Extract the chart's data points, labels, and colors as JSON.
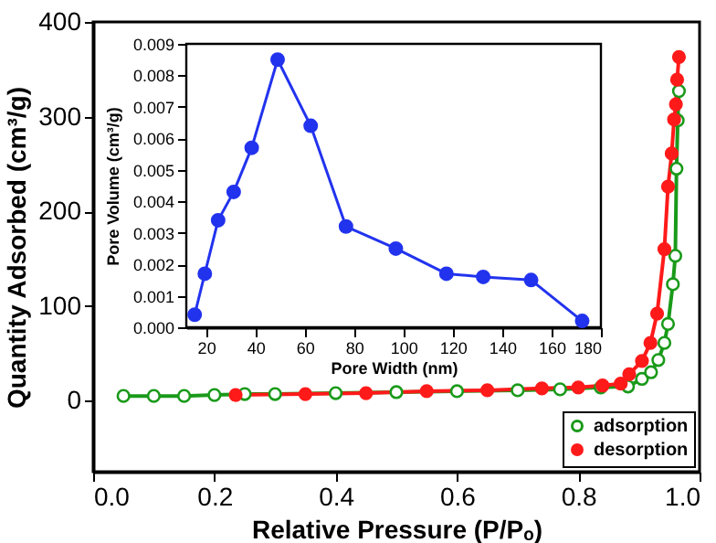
{
  "chart_data": [
    {
      "type": "line",
      "xlabel": "Relative Pressure (P/Pₒ)",
      "ylabel": "Quantity Adsorbed (cm³/g)",
      "xlim": [
        0,
        1.0
      ],
      "ylim": [
        -75,
        400
      ],
      "xticks": [
        {
          "value": 0,
          "label": "0.0"
        },
        {
          "value": 0.2,
          "label": "0.2"
        },
        {
          "value": 0.4,
          "label": "0.4"
        },
        {
          "value": 0.6,
          "label": "0.6"
        },
        {
          "value": 0.8,
          "label": "0.8"
        },
        {
          "value": 1.0,
          "label": "1.0"
        }
      ],
      "yticks": [
        0,
        100,
        200,
        300,
        400
      ],
      "grid": false,
      "legend": "bottom right",
      "marker": "circle",
      "line_style": "solid",
      "series": [
        {
          "name": "adsorption",
          "color": "#1a9a1a",
          "x": [
            0.05,
            0.1,
            0.15,
            0.2,
            0.25,
            0.3,
            0.4,
            0.5,
            0.6,
            0.7,
            0.77,
            0.837,
            0.882,
            0.905,
            0.92,
            0.932,
            0.942,
            0.948,
            0.956,
            0.96,
            0.962,
            0.964,
            0.966
          ],
          "values": [
            5,
            5,
            5,
            6,
            7,
            7,
            8,
            9,
            10,
            11,
            12,
            14,
            15,
            23,
            30,
            43,
            61,
            81,
            123,
            153,
            245,
            296,
            327
          ]
        },
        {
          "name": "desorption",
          "color": "#ff1a1a",
          "x": [
            0.235,
            0.35,
            0.45,
            0.55,
            0.65,
            0.74,
            0.8,
            0.84,
            0.87,
            0.884,
            0.905,
            0.919,
            0.93,
            0.942,
            0.948,
            0.954,
            0.958,
            0.961,
            0.963,
            0.966
          ],
          "values": [
            6,
            7,
            8,
            10,
            11,
            13,
            14,
            16,
            18,
            28,
            42,
            61,
            92,
            160,
            226,
            261,
            297,
            313,
            339,
            363
          ]
        }
      ]
    },
    {
      "type": "line",
      "xlabel": "Pore Width (nm)",
      "ylabel": "Pore Volume (cm³/g)",
      "xlim": [
        12,
        180
      ],
      "ylim": [
        0,
        0.009
      ],
      "xticks": [
        20,
        40,
        60,
        80,
        100,
        120,
        140,
        160,
        180
      ],
      "yticks": [
        {
          "value": 0,
          "label": "0.000"
        },
        {
          "value": 0.001,
          "label": "0.001"
        },
        {
          "value": 0.002,
          "label": "0.002"
        },
        {
          "value": 0.003,
          "label": "0.003"
        },
        {
          "value": 0.004,
          "label": "0.004"
        },
        {
          "value": 0.005,
          "label": "0.005"
        },
        {
          "value": 0.006,
          "label": "0.006"
        },
        {
          "value": 0.007,
          "label": "0.007"
        },
        {
          "value": 0.008,
          "label": "0.008"
        },
        {
          "value": 0.009,
          "label": "0.009"
        }
      ],
      "grid": false,
      "marker": "circle",
      "line_style": "solid",
      "series": [
        {
          "color": "#2233ee",
          "x": [
            15.4,
            19.5,
            24.9,
            31.2,
            38.5,
            49,
            62.4,
            76.7,
            96.9,
            117.4,
            132.3,
            151.7,
            172.4
          ],
          "values": [
            0.0004,
            0.0017,
            0.0034,
            0.0043,
            0.0057,
            0.0085,
            0.0064,
            0.0032,
            0.0025,
            0.0017,
            0.0016,
            0.0015,
            0.0002
          ]
        }
      ]
    }
  ]
}
